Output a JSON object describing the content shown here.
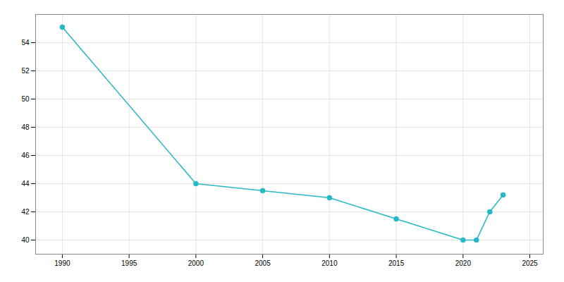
{
  "chart_data": {
    "type": "line",
    "x": [
      1990,
      2000,
      2005,
      2010,
      2015,
      2020,
      2021,
      2022,
      2023
    ],
    "values": [
      55.1,
      44.0,
      43.5,
      43.0,
      41.5,
      40.0,
      40.0,
      42.0,
      43.2
    ],
    "color": "#29b8c8",
    "marker": "circle",
    "xlim": [
      1988,
      2026
    ],
    "xticks": [
      1990,
      1995,
      2000,
      2005,
      2010,
      2015,
      2020,
      2025
    ],
    "ylim": [
      39.0,
      56.0
    ],
    "yticks": [
      40,
      42,
      44,
      46,
      48,
      50,
      52,
      54
    ],
    "grid": true
  }
}
